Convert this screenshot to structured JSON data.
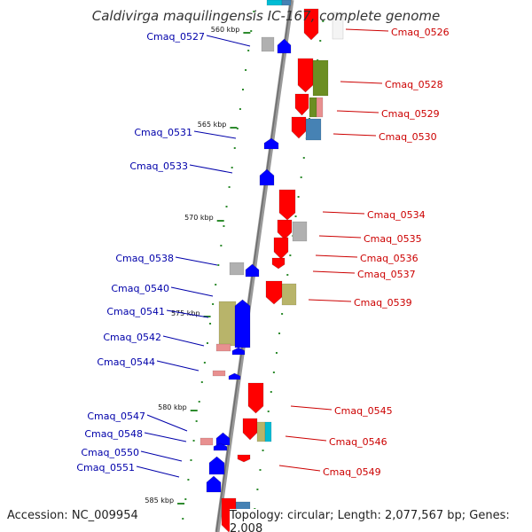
{
  "title": "Caldivirga maquilingensis IC-167, complete genome",
  "accession_text": "Accession: NC_009954",
  "topology_text": "Topology: circular; Length: 2,077,567 bp; Genes: 2,008",
  "colors": {
    "backbone": "#808080",
    "forward_strand": "#ff0000",
    "reverse_strand": "#0000ff",
    "forward_label": "#cc0000",
    "reverse_label": "#0000aa",
    "ticks": "#2e8b2e",
    "olive": "#b8b46a",
    "green": "#6b8e23",
    "steel": "#4682b4",
    "gray": "#b0b0b0",
    "cyan": "#00bcd4",
    "pink": "#e89090"
  },
  "map": {
    "kbp_ticks": [
      "560 kbp",
      "565 kbp",
      "570 kbp",
      "575 kbp",
      "580 kbp",
      "585 kbp"
    ],
    "genes_forward": [
      {
        "label": "Cmaq_0526"
      },
      {
        "label": "Cmaq_0528"
      },
      {
        "label": "Cmaq_0529"
      },
      {
        "label": "Cmaq_0530"
      },
      {
        "label": "Cmaq_0534"
      },
      {
        "label": "Cmaq_0535"
      },
      {
        "label": "Cmaq_0536"
      },
      {
        "label": "Cmaq_0537"
      },
      {
        "label": "Cmaq_0539"
      },
      {
        "label": "Cmaq_0545"
      },
      {
        "label": "Cmaq_0546"
      },
      {
        "label": "Cmaq_0549"
      }
    ],
    "genes_reverse": [
      {
        "label": "Cmaq_0527"
      },
      {
        "label": "Cmaq_0531"
      },
      {
        "label": "Cmaq_0533"
      },
      {
        "label": "Cmaq_0538"
      },
      {
        "label": "Cmaq_0540"
      },
      {
        "label": "Cmaq_0541"
      },
      {
        "label": "Cmaq_0542"
      },
      {
        "label": "Cmaq_0544"
      },
      {
        "label": "Cmaq_0547"
      },
      {
        "label": "Cmaq_0548"
      },
      {
        "label": "Cmaq_0550"
      },
      {
        "label": "Cmaq_0551"
      }
    ]
  }
}
